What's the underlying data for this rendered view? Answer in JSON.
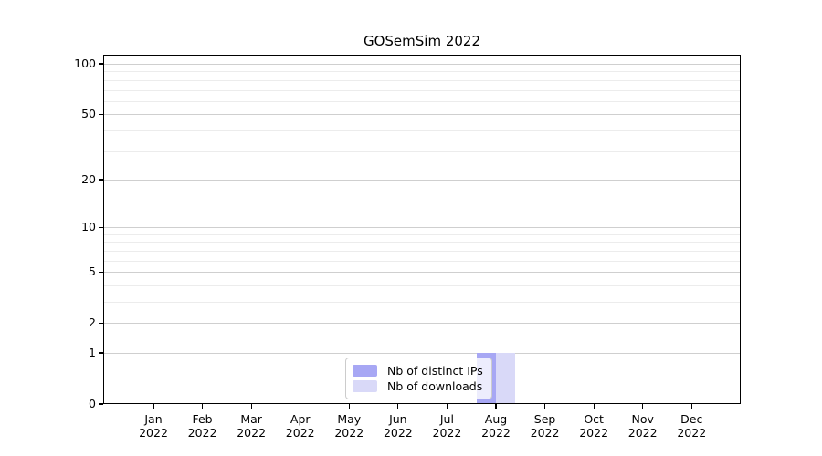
{
  "chart_data": {
    "type": "bar",
    "title": "GOSemSim 2022",
    "categories": [
      "Jan 2022",
      "Feb 2022",
      "Mar 2022",
      "Apr 2022",
      "May 2022",
      "Jun 2022",
      "Jul 2022",
      "Aug 2022",
      "Sep 2022",
      "Oct 2022",
      "Nov 2022",
      "Dec 2022"
    ],
    "x_tick_top_lines": [
      "Jan",
      "Feb",
      "Mar",
      "Apr",
      "May",
      "Jun",
      "Jul",
      "Aug",
      "Sep",
      "Oct",
      "Nov",
      "Dec"
    ],
    "x_tick_bottom_line": "2022",
    "series": [
      {
        "name": "Nb of distinct IPs",
        "color": "#a7a7f4",
        "values": [
          0,
          0,
          0,
          0,
          0,
          0,
          0,
          1,
          0,
          0,
          0,
          0
        ]
      },
      {
        "name": "Nb of downloads",
        "color": "#d9d9f8",
        "values": [
          0,
          0,
          0,
          0,
          0,
          0,
          0,
          1,
          0,
          0,
          0,
          0
        ]
      }
    ],
    "y_axis": {
      "scale": "log1p",
      "range": [
        0,
        100
      ],
      "major_ticks": [
        0,
        1,
        2,
        5,
        10,
        20,
        50,
        100
      ],
      "minor_ticks": [
        3,
        4,
        6,
        7,
        8,
        9,
        30,
        40,
        60,
        70,
        80,
        90
      ]
    },
    "grid": "horizontal",
    "legend_position": "inside-bottom-center",
    "colors": {
      "major_grid": "#cfcfcf",
      "minor_grid": "#ececec",
      "spine": "#000000"
    }
  }
}
